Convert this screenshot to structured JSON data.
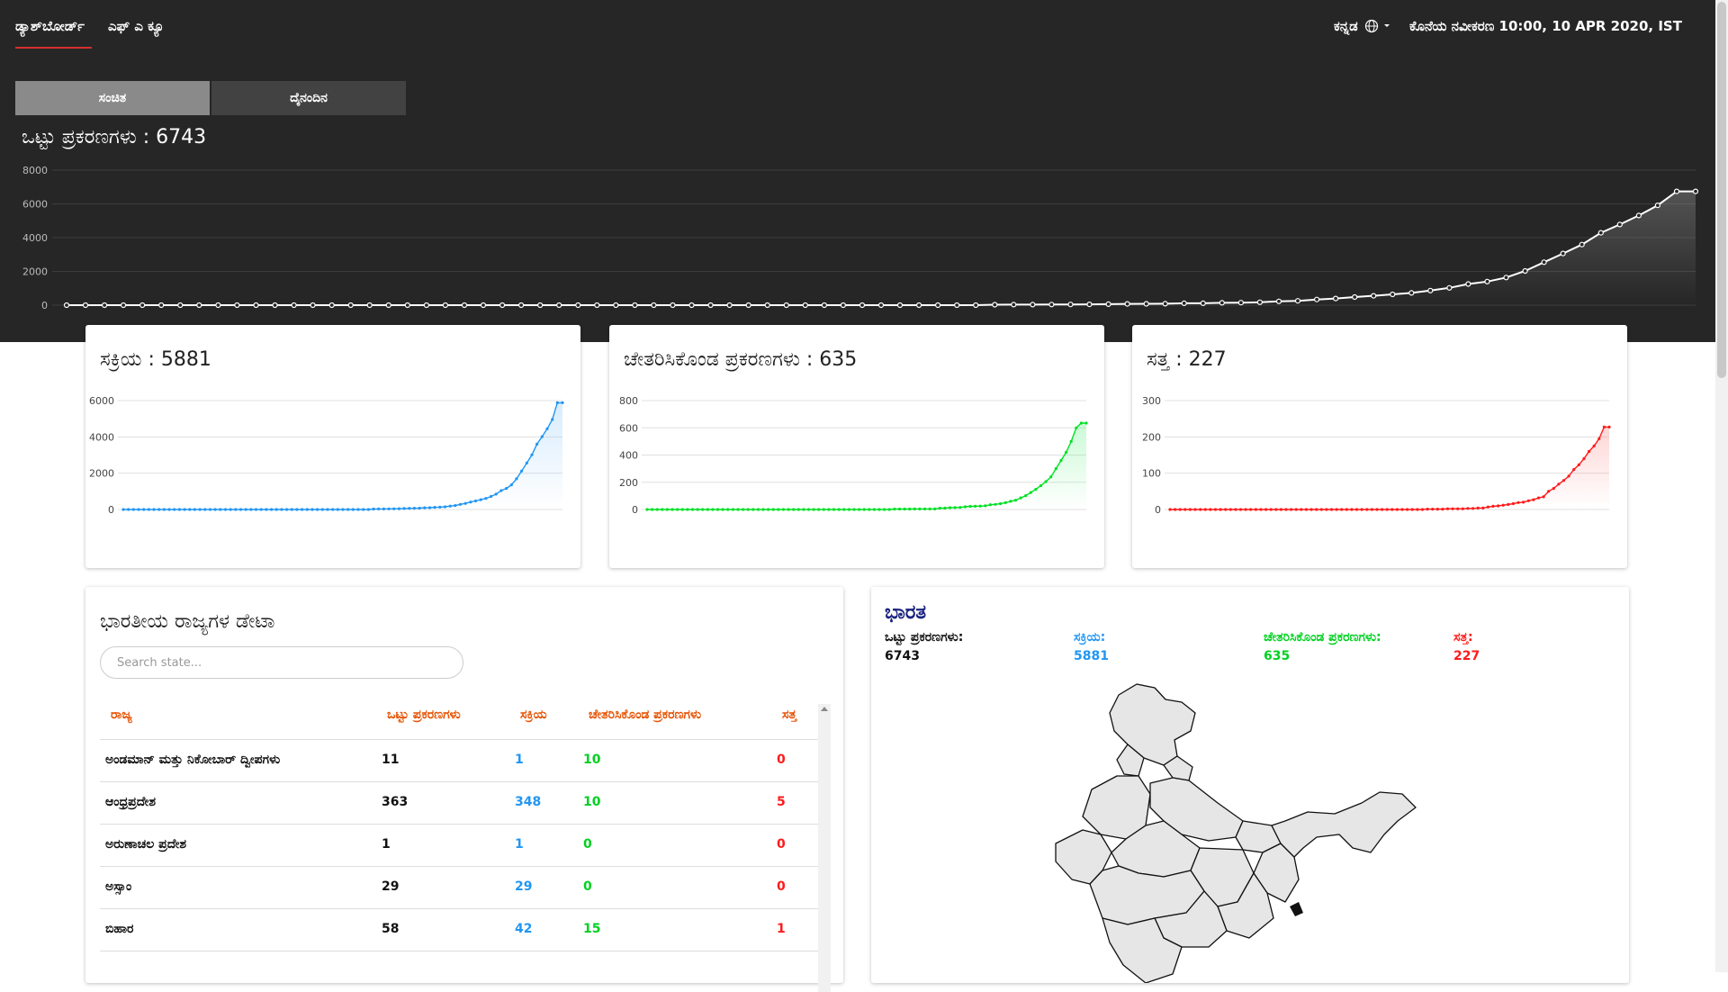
{
  "nav": {
    "dashboard": "ಡ್ಯಾಶ್‌ಬೋರ್ಡ್",
    "faq": "ಎಫ್ ಎ ಕ್ಯೂ",
    "language": "ಕನ್ನಡ",
    "last_updated": "ಕೊನೆಯ ನವೀಕರಣ 10:00, 10 APR 2020, IST"
  },
  "tabs": {
    "cumulative": "ಸಂಚಿತ",
    "daily": "ದೈನಂದಿನ"
  },
  "colors": {
    "active": "#2196f3",
    "recovered": "#00e025",
    "deaths": "#ff1a1a",
    "accent": "#d32f2f",
    "header_bg": "#262626"
  },
  "total": {
    "label": "ಒಟ್ಟು ಪ್ರಕರಣಗಳು",
    "title": "ಒಟ್ಟು ಪ್ರಕರಣಗಳು : 6743",
    "value": 6743
  },
  "cards": {
    "active": {
      "title": "ಸಕ್ರಿಯ : 5881"
    },
    "recovered": {
      "title": "ಚೇತರಿಸಿಕೊಂಡ ಪ್ರಕರಣಗಳು : 635"
    },
    "deaths": {
      "title": "ಸತ್ತ : 227"
    }
  },
  "chart_data": [
    {
      "type": "area",
      "title": "ಒಟ್ಟು ಪ್ರಕರಣಗಳು : 6743",
      "ylim": [
        0,
        8000
      ],
      "y_ticks": [
        "0",
        "2000",
        "4000",
        "6000",
        "8000"
      ],
      "grid": true,
      "values": [
        0,
        0,
        0,
        0,
        0,
        0,
        0,
        0,
        0,
        0,
        0,
        0,
        0,
        0,
        0,
        0,
        0,
        0,
        0,
        0,
        0,
        0,
        0,
        0,
        0,
        0,
        0,
        0,
        0,
        0,
        0,
        0,
        0,
        0,
        0,
        0,
        0,
        0,
        0,
        0,
        0,
        0,
        0,
        0,
        0,
        0,
        0,
        0,
        0,
        29,
        31,
        34,
        39,
        43,
        50,
        60,
        73,
        81,
        84,
        110,
        114,
        137,
        151,
        173,
        223,
        258,
        334,
        396,
        482,
        556,
        640,
        725,
        862,
        1024,
        1251,
        1397,
        1635,
        2029,
        2543,
        3060,
        3588,
        4289,
        4778,
        5311,
        5916,
        6743,
        6743
      ]
    },
    {
      "type": "area",
      "title": "ಸಕ್ರಿಯ : 5881",
      "ylim": [
        0,
        6000
      ],
      "y_ticks": [
        "0",
        "2000",
        "4000",
        "6000"
      ],
      "grid": true,
      "values": [
        0,
        0,
        0,
        0,
        0,
        0,
        0,
        0,
        0,
        0,
        0,
        0,
        0,
        0,
        0,
        0,
        0,
        0,
        0,
        0,
        0,
        0,
        0,
        0,
        0,
        0,
        0,
        0,
        0,
        0,
        0,
        0,
        0,
        0,
        0,
        0,
        0,
        0,
        0,
        0,
        0,
        0,
        0,
        0,
        0,
        0,
        0,
        0,
        0,
        25,
        28,
        30,
        35,
        38,
        44,
        53,
        64,
        70,
        73,
        95,
        98,
        118,
        130,
        148,
        190,
        220,
        285,
        338,
        410,
        470,
        540,
        610,
        720,
        850,
        1040,
        1160,
        1360,
        1690,
        2120,
        2560,
        3010,
        3600,
        4010,
        4450,
        4960,
        5881,
        5881
      ]
    },
    {
      "type": "area",
      "title": "ಚೇತರಿಸಿಕೊಂಡ ಪ್ರಕರಣಗಳು : 635",
      "ylim": [
        0,
        800
      ],
      "y_ticks": [
        "0",
        "200",
        "400",
        "600",
        "800"
      ],
      "grid": true,
      "values": [
        0,
        0,
        0,
        0,
        0,
        0,
        0,
        0,
        0,
        0,
        0,
        0,
        0,
        0,
        0,
        0,
        0,
        0,
        0,
        0,
        0,
        0,
        0,
        0,
        0,
        0,
        0,
        0,
        0,
        0,
        0,
        0,
        0,
        0,
        0,
        0,
        0,
        0,
        0,
        0,
        0,
        0,
        0,
        0,
        0,
        0,
        0,
        0,
        0,
        3,
        3,
        3,
        3,
        4,
        4,
        4,
        4,
        4,
        10,
        10,
        13,
        14,
        15,
        20,
        23,
        24,
        25,
        27,
        35,
        38,
        43,
        50,
        60,
        68,
        85,
        102,
        125,
        148,
        175,
        205,
        240,
        300,
        360,
        420,
        500,
        600,
        635,
        635
      ]
    },
    {
      "type": "area",
      "title": "ಸತ್ತ : 227",
      "ylim": [
        0,
        300
      ],
      "y_ticks": [
        "0",
        "100",
        "200",
        "300"
      ],
      "grid": true,
      "values": [
        0,
        0,
        0,
        0,
        0,
        0,
        0,
        0,
        0,
        0,
        0,
        0,
        0,
        0,
        0,
        0,
        0,
        0,
        0,
        0,
        0,
        0,
        0,
        0,
        0,
        0,
        0,
        0,
        0,
        0,
        0,
        0,
        0,
        0,
        0,
        0,
        0,
        0,
        0,
        0,
        0,
        0,
        0,
        0,
        0,
        0,
        0,
        0,
        0,
        0,
        0,
        1,
        1,
        1,
        1,
        2,
        2,
        2,
        2,
        3,
        3,
        4,
        4,
        7,
        9,
        10,
        12,
        14,
        16,
        19,
        20,
        24,
        27,
        32,
        35,
        50,
        58,
        70,
        80,
        92,
        110,
        123,
        140,
        160,
        175,
        195,
        227,
        227
      ]
    }
  ],
  "states": {
    "title": "ಭಾರತೀಯ ರಾಜ್ಯಗಳ ಡೇಟಾ",
    "search_placeholder": "Search state...",
    "headers": {
      "state": "ರಾಜ್ಯ",
      "total": "ಒಟ್ಟು ಪ್ರಕರಣಗಳು",
      "active": "ಸಕ್ರಿಯ",
      "recovered": "ಚೇತರಿಸಿಕೊಂಡ ಪ್ರಕರಣಗಳು",
      "deaths": "ಸತ್ತ"
    },
    "rows": [
      {
        "name": "ಅಂಡಮಾನ್ ಮತ್ತು ನಿಕೋಬಾರ್ ದ್ವೀಪಗಳು",
        "total": "11",
        "active": "1",
        "recovered": "10",
        "deaths": "0"
      },
      {
        "name": "ಆಂಧ್ರಪ್ರದೇಶ",
        "total": "363",
        "active": "348",
        "recovered": "10",
        "deaths": "5"
      },
      {
        "name": "ಅರುಣಾಚಲ ಪ್ರದೇಶ",
        "total": "1",
        "active": "1",
        "recovered": "0",
        "deaths": "0"
      },
      {
        "name": "ಅಸ್ಸಾಂ",
        "total": "29",
        "active": "29",
        "recovered": "0",
        "deaths": "0"
      },
      {
        "name": "ಬಿಹಾರ",
        "total": "58",
        "active": "42",
        "recovered": "15",
        "deaths": "1"
      }
    ]
  },
  "india": {
    "title": "ಭಾರತ",
    "stats": [
      {
        "label": "ಒಟ್ಟು ಪ್ರಕರಣಗಳು:",
        "value": "6743"
      },
      {
        "label": "ಸಕ್ರಿಯ:",
        "value": "5881"
      },
      {
        "label": "ಚೇತರಿಸಿಕೊಂಡ ಪ್ರಕರಣಗಳು:",
        "value": "635"
      },
      {
        "label": "ಸತ್ತ:",
        "value": "227"
      }
    ],
    "map_icon": "india-map"
  }
}
